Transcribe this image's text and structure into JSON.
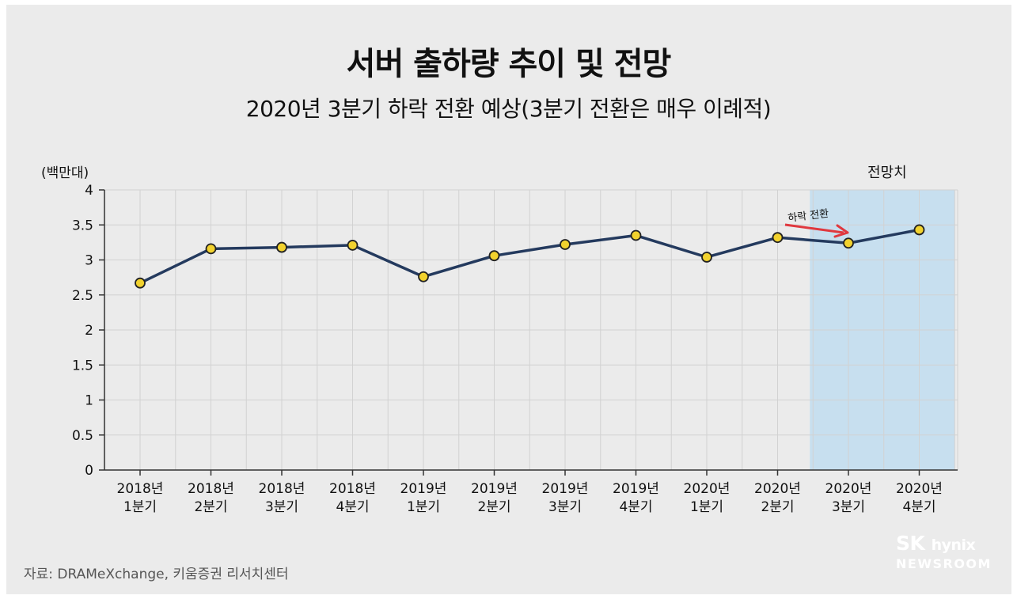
{
  "title": "서버 출하량 추이 및 전망",
  "subtitle": "2020년 3분기 하락 전환 예상(3분기 전환은 매우 이례적)",
  "unit_label": "(백만대)",
  "forecast_label": "전망치",
  "annotation": "하락 전환",
  "source": "자료: DRAMeXchange, 키움증권 리서치센터",
  "logo": {
    "brand": "SK",
    "brand_sub": "hynix",
    "line2": "NEWSROOM"
  },
  "colors": {
    "line": "#243a5e",
    "marker_fill": "#f2d22e",
    "highlight": "#c7dfef",
    "arrow": "#e0383e",
    "grid": "#d2d2d2",
    "background": "#ebebeb"
  },
  "chart_data": {
    "type": "line",
    "categories": [
      [
        "2018년",
        "1분기"
      ],
      [
        "2018년",
        "2분기"
      ],
      [
        "2018년",
        "3분기"
      ],
      [
        "2018년",
        "4분기"
      ],
      [
        "2019년",
        "1분기"
      ],
      [
        "2019년",
        "2분기"
      ],
      [
        "2019년",
        "3분기"
      ],
      [
        "2019년",
        "4분기"
      ],
      [
        "2020년",
        "1분기"
      ],
      [
        "2020년",
        "2분기"
      ],
      [
        "2020년",
        "3분기"
      ],
      [
        "2020년",
        "4분기"
      ]
    ],
    "values": [
      2.67,
      3.16,
      3.18,
      3.21,
      2.76,
      3.06,
      3.22,
      3.35,
      3.04,
      3.32,
      3.24,
      3.43
    ],
    "ylim": [
      0,
      4
    ],
    "yticks": [
      0,
      0.5,
      1,
      1.5,
      2,
      2.5,
      3,
      3.5,
      4
    ],
    "ytick_labels": [
      "0",
      "0.5",
      "1",
      "1.5",
      "2",
      "2.5",
      "3",
      "3.5",
      "4"
    ],
    "ylabel": "(백만대)",
    "forecast_categories": [
      "2020년 3분기",
      "2020년 4분기"
    ],
    "grid": true
  }
}
